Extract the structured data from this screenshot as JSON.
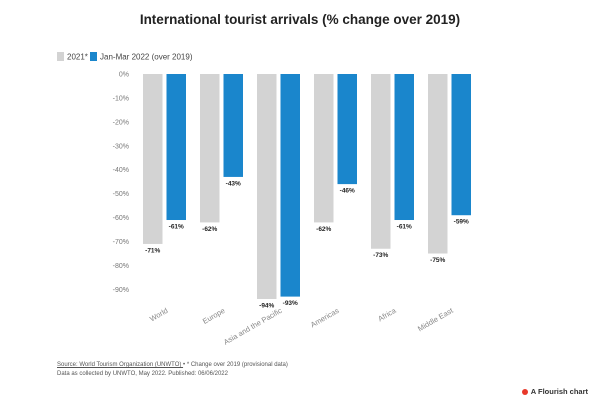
{
  "chart_data": {
    "type": "bar",
    "title": "International tourist arrivals (% change over 2019)",
    "categories": [
      "World",
      "Europe",
      "Asia and the Pacific",
      "Americas",
      "Africa",
      "Middle East"
    ],
    "series": [
      {
        "name": "2021*",
        "color": "#d3d3d3",
        "values": [
          -71,
          -62,
          -94,
          -62,
          -73,
          -75
        ]
      },
      {
        "name": "Jan-Mar 2022 (over 2019)",
        "color": "#1a86cc",
        "values": [
          -61,
          -43,
          -93,
          -46,
          -61,
          -59
        ]
      }
    ],
    "value_labels": [
      [
        "-71%",
        "-62%",
        "-94%",
        "-62%",
        "-73%",
        "-75%"
      ],
      [
        "-61%",
        "-43%",
        "-93%",
        "-46%",
        "-61%",
        "-59%"
      ]
    ],
    "yticks": [
      0,
      -10,
      -20,
      -30,
      -40,
      -50,
      -60,
      -70,
      -80,
      -90
    ],
    "ytick_labels": [
      "0%",
      "-10%",
      "-20%",
      "-30%",
      "-40%",
      "-50%",
      "-60%",
      "-70%",
      "-80%",
      "-90%"
    ],
    "ylim": [
      -94,
      0
    ],
    "legend_position": "top-left",
    "grid": false
  },
  "footer": {
    "source_link": "Source: World Tourism Organization (UNWTO) ",
    "source_rest": "• * Change over 2019 (provisional data)",
    "line2": "Data as collected by UNWTO, May 2022. Published: 06/06/2022"
  },
  "branding": {
    "flourish_label": "A Flourish chart",
    "flourish_color": "#e8382a"
  }
}
